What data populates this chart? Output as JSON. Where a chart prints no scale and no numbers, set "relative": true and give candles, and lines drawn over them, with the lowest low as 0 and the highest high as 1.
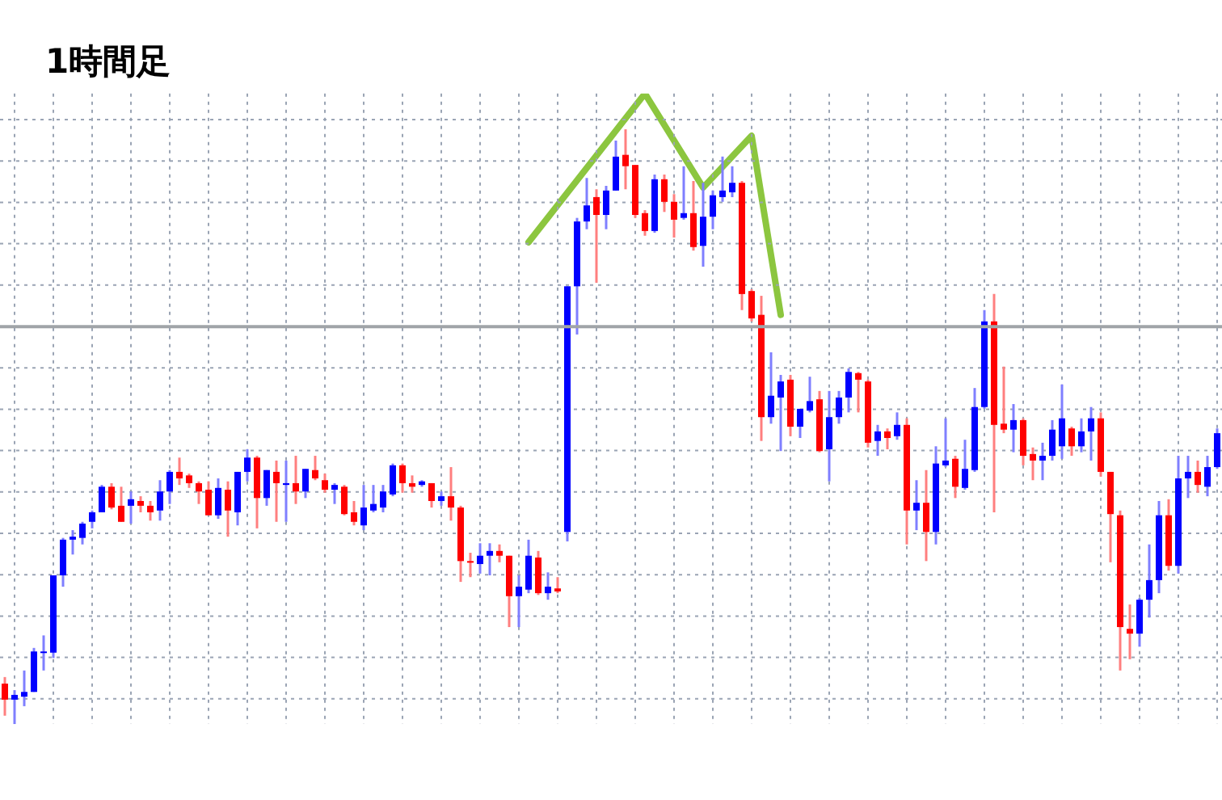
{
  "chart_data": {
    "type": "candlestick",
    "title": "1時間足",
    "relative": true,
    "grid": true,
    "tick_labels": false,
    "categories": [
      null,
      null,
      null,
      null,
      null,
      null,
      null,
      null,
      null,
      null,
      null,
      null,
      null,
      null,
      null,
      null,
      null,
      null,
      null,
      null,
      null,
      null,
      null,
      null,
      null,
      null,
      null,
      null,
      null,
      null,
      null,
      null,
      null,
      null,
      null,
      null,
      null,
      null,
      null,
      null,
      null,
      null,
      null,
      null,
      null,
      null,
      null,
      null,
      null,
      null,
      null,
      null,
      null,
      null,
      null,
      null,
      null,
      null,
      null,
      null,
      null,
      null,
      null,
      null,
      null,
      null,
      null,
      null,
      null,
      null,
      null,
      null,
      null,
      null,
      null,
      null,
      null,
      null,
      null,
      null,
      null,
      null,
      null,
      null,
      null,
      null,
      null,
      null,
      null,
      null,
      null,
      null,
      null,
      null,
      null,
      null,
      null,
      null,
      null,
      null,
      null,
      null,
      null,
      null,
      null,
      null,
      null,
      null,
      null,
      null,
      null,
      null,
      null,
      null,
      null,
      null,
      null,
      null,
      null,
      null,
      null,
      null,
      null,
      null,
      null,
      null
    ],
    "series": [
      {
        "type": "line",
        "color": "#8cc63f",
        "values": [
          null,
          null,
          null,
          null,
          null,
          null,
          null,
          null,
          null,
          null,
          null,
          null,
          null,
          null,
          null,
          null,
          null,
          null,
          null,
          null,
          null,
          null,
          null,
          null,
          null,
          null,
          null,
          null,
          null,
          null,
          null,
          null,
          null,
          null,
          null,
          null,
          null,
          null,
          null,
          null,
          null,
          null,
          null,
          null,
          null,
          null,
          null,
          null,
          null,
          null,
          null,
          null,
          null,
          null,
          0.81,
          null,
          null,
          null,
          null,
          null,
          null,
          null,
          null,
          null,
          null,
          null,
          1.06,
          null,
          null,
          null,
          null,
          null,
          0.902,
          null,
          null,
          null,
          null,
          0.989,
          null,
          null,
          0.688,
          null,
          null,
          null,
          null,
          null,
          null,
          null,
          null,
          null,
          null,
          null,
          null,
          null,
          null,
          null,
          null,
          null,
          null,
          null,
          null,
          null,
          null,
          null,
          null,
          null,
          null,
          null,
          null,
          null,
          null,
          null,
          null,
          null,
          null,
          null,
          null,
          null,
          null,
          null,
          null,
          null,
          null,
          null,
          null,
          null
        ]
      }
    ],
    "ref_lines": [
      {
        "axis": "y",
        "value": 0.668,
        "color": "#a0a4a8"
      }
    ],
    "ohlc": [
      [
        0.068,
        0.079,
        0.014,
        0.041
      ],
      [
        0.041,
        0.057,
        0,
        0.049
      ],
      [
        0.046,
        0.09,
        0.03,
        0.054
      ],
      [
        0.054,
        0.128,
        0.054,
        0.122
      ],
      [
        0.12,
        0.149,
        0.09,
        0.122
      ],
      [
        0.12,
        0.25,
        0.111,
        0.25
      ],
      [
        0.25,
        0.313,
        0.231,
        0.31
      ],
      [
        0.31,
        0.326,
        0.285,
        0.315
      ],
      [
        0.313,
        0.34,
        0.302,
        0.337
      ],
      [
        0.34,
        0.359,
        0.329,
        0.356
      ],
      [
        0.356,
        0.402,
        0.356,
        0.399
      ],
      [
        0.399,
        0.405,
        0.361,
        0.364
      ],
      [
        0.367,
        0.399,
        0.34,
        0.34
      ],
      [
        0.367,
        0.391,
        0.337,
        0.378
      ],
      [
        0.375,
        0.383,
        0.356,
        0.367
      ],
      [
        0.367,
        0.375,
        0.342,
        0.356
      ],
      [
        0.359,
        0.41,
        0.342,
        0.391
      ],
      [
        0.391,
        0.427,
        0.37,
        0.424
      ],
      [
        0.424,
        0.448,
        0.402,
        0.413
      ],
      [
        0.418,
        0.421,
        0.397,
        0.405
      ],
      [
        0.405,
        0.408,
        0.37,
        0.391
      ],
      [
        0.394,
        0.408,
        0.351,
        0.351
      ],
      [
        0.351,
        0.413,
        0.345,
        0.397
      ],
      [
        0.394,
        0.408,
        0.315,
        0.359
      ],
      [
        0.356,
        0.424,
        0.334,
        0.424
      ],
      [
        0.424,
        0.462,
        0.408,
        0.448
      ],
      [
        0.448,
        0.451,
        0.329,
        0.38
      ],
      [
        0.38,
        0.427,
        0.367,
        0.427
      ],
      [
        0.424,
        0.443,
        0.34,
        0.405
      ],
      [
        0.402,
        0.443,
        0.34,
        0.405
      ],
      [
        0.405,
        0.451,
        0.37,
        0.391
      ],
      [
        0.391,
        0.429,
        0.38,
        0.429
      ],
      [
        0.427,
        0.451,
        0.41,
        0.413
      ],
      [
        0.41,
        0.421,
        0.389,
        0.394
      ],
      [
        0.394,
        0.405,
        0.37,
        0.402
      ],
      [
        0.399,
        0.402,
        0.351,
        0.353
      ],
      [
        0.356,
        0.375,
        0.334,
        0.34
      ],
      [
        0.334,
        0.402,
        0.326,
        0.364
      ],
      [
        0.359,
        0.402,
        0.356,
        0.37
      ],
      [
        0.364,
        0.402,
        0.356,
        0.391
      ],
      [
        0.386,
        0.438,
        0.383,
        0.435
      ],
      [
        0.435,
        0.438,
        0.389,
        0.405
      ],
      [
        0.405,
        0.418,
        0.389,
        0.399
      ],
      [
        0.402,
        0.41,
        0.399,
        0.408
      ],
      [
        0.405,
        0.405,
        0.364,
        0.375
      ],
      [
        0.375,
        0.391,
        0.367,
        0.383
      ],
      [
        0.383,
        0.432,
        0.342,
        0.364
      ],
      [
        0.364,
        0.367,
        0.239,
        0.274
      ],
      [
        0.274,
        0.288,
        0.247,
        0.272
      ],
      [
        0.269,
        0.304,
        0.253,
        0.283
      ],
      [
        0.283,
        0.304,
        0.25,
        0.291
      ],
      [
        0.291,
        0.302,
        0.272,
        0.283
      ],
      [
        0.283,
        0.283,
        0.163,
        0.215
      ],
      [
        0.215,
        0.25,
        0.163,
        0.231
      ],
      [
        0.226,
        0.31,
        0.22,
        0.283
      ],
      [
        0.28,
        0.291,
        0.217,
        0.22
      ],
      [
        0.22,
        0.255,
        0.209,
        0.231
      ],
      [
        0.228,
        0.247,
        0.22,
        0.223
      ],
      [
        0.323,
        0.736,
        0.307,
        0.736
      ],
      [
        0.736,
        0.851,
        0.655,
        0.845
      ],
      [
        0.845,
        0.918,
        0.832,
        0.872
      ],
      [
        0.886,
        0.899,
        0.742,
        0.856
      ],
      [
        0.856,
        0.905,
        0.832,
        0.897
      ],
      [
        0.897,
        0.981,
        0.897,
        0.954
      ],
      [
        0.957,
        1,
        0.899,
        0.938
      ],
      [
        0.94,
        0.94,
        0.851,
        0.856
      ],
      [
        0.859,
        0.864,
        0.821,
        0.829
      ],
      [
        0.829,
        0.924,
        0.826,
        0.916
      ],
      [
        0.916,
        0.924,
        0.861,
        0.878
      ],
      [
        0.878,
        0.891,
        0.818,
        0.848
      ],
      [
        0.851,
        0.938,
        0.848,
        0.859
      ],
      [
        0.859,
        0.913,
        0.796,
        0.802
      ],
      [
        0.804,
        0.91,
        0.769,
        0.853
      ],
      [
        0.853,
        0.897,
        0.832,
        0.889
      ],
      [
        0.886,
        0.954,
        0.878,
        0.897
      ],
      [
        0.894,
        0.938,
        0.886,
        0.91
      ],
      [
        0.91,
        0.913,
        0.696,
        0.723
      ],
      [
        0.728,
        0.731,
        0.677,
        0.682
      ],
      [
        0.688,
        0.72,
        0.476,
        0.516
      ],
      [
        0.516,
        0.625,
        0.505,
        0.552
      ],
      [
        0.549,
        0.587,
        0.459,
        0.576
      ],
      [
        0.579,
        0.587,
        0.484,
        0.5
      ],
      [
        0.5,
        0.53,
        0.481,
        0.53
      ],
      [
        0.527,
        0.584,
        0.524,
        0.543
      ],
      [
        0.546,
        0.56,
        0.457,
        0.459
      ],
      [
        0.462,
        0.56,
        0.408,
        0.516
      ],
      [
        0.516,
        0.56,
        0.505,
        0.549
      ],
      [
        0.549,
        0.598,
        0.524,
        0.592
      ],
      [
        0.59,
        0.592,
        0.524,
        0.579
      ],
      [
        0.576,
        0.579,
        0.465,
        0.473
      ],
      [
        0.476,
        0.503,
        0.451,
        0.492
      ],
      [
        0.492,
        0.497,
        0.462,
        0.481
      ],
      [
        0.484,
        0.524,
        0.478,
        0.503
      ],
      [
        0.503,
        0.514,
        0.302,
        0.359
      ],
      [
        0.359,
        0.41,
        0.326,
        0.372
      ],
      [
        0.372,
        0.427,
        0.274,
        0.323
      ],
      [
        0.323,
        0.467,
        0.302,
        0.438
      ],
      [
        0.435,
        0.514,
        0.432,
        0.443
      ],
      [
        0.446,
        0.451,
        0.38,
        0.399
      ],
      [
        0.397,
        0.478,
        0.394,
        0.429
      ],
      [
        0.427,
        0.565,
        0.424,
        0.533
      ],
      [
        0.533,
        0.696,
        0.53,
        0.677
      ],
      [
        0.677,
        0.723,
        0.356,
        0.503
      ],
      [
        0.505,
        0.601,
        0.489,
        0.495
      ],
      [
        0.495,
        0.538,
        0.457,
        0.511
      ],
      [
        0.511,
        0.514,
        0.435,
        0.451
      ],
      [
        0.454,
        0.465,
        0.41,
        0.443
      ],
      [
        0.443,
        0.473,
        0.41,
        0.451
      ],
      [
        0.451,
        0.511,
        0.443,
        0.495
      ],
      [
        0.467,
        0.571,
        0.446,
        0.514
      ],
      [
        0.497,
        0.5,
        0.451,
        0.467
      ],
      [
        0.467,
        0.514,
        0.457,
        0.492
      ],
      [
        0.492,
        0.533,
        0.443,
        0.514
      ],
      [
        0.514,
        0.524,
        0.416,
        0.424
      ],
      [
        0.424,
        0.424,
        0.272,
        0.353
      ],
      [
        0.351,
        0.359,
        0.09,
        0.163
      ],
      [
        0.16,
        0.201,
        0.109,
        0.152
      ],
      [
        0.152,
        0.212,
        0.13,
        0.209
      ],
      [
        0.209,
        0.302,
        0.179,
        0.242
      ],
      [
        0.242,
        0.375,
        0.22,
        0.351
      ],
      [
        0.351,
        0.378,
        0.258,
        0.266
      ],
      [
        0.266,
        0.451,
        0.253,
        0.413
      ],
      [
        0.413,
        0.451,
        0.38,
        0.424
      ],
      [
        0.424,
        0.443,
        0.389,
        0.402
      ],
      [
        0.399,
        0.451,
        0.383,
        0.432
      ],
      [
        0.432,
        0.497,
        0.429,
        0.489
      ]
    ]
  }
}
